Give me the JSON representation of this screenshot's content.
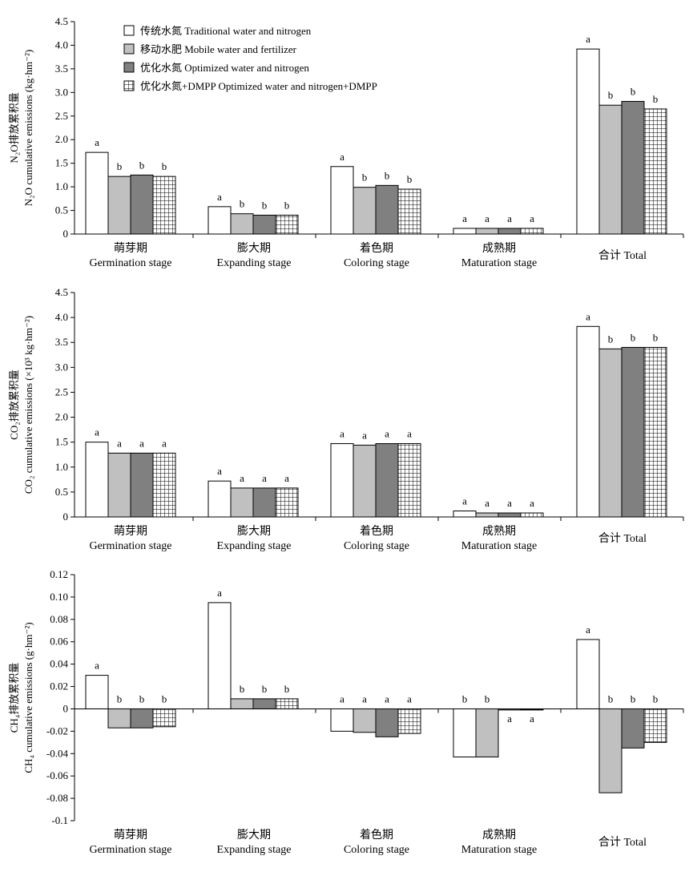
{
  "legend": [
    {
      "label": "传统水氮 Traditional water and nitrogen",
      "style": "white"
    },
    {
      "label": "移动水肥 Mobile water and fertilizer",
      "style": "light"
    },
    {
      "label": "优化水氮 Optimized water and nitrogen",
      "style": "dark"
    },
    {
      "label": "优化水氮+DMPP Optimized water and nitrogen+DMPP",
      "style": "grid"
    }
  ],
  "colors": {
    "white": "#ffffff",
    "light": "#c0c0c0",
    "dark": "#808080",
    "grid": "#ffffff"
  },
  "chart_data": [
    {
      "type": "bar",
      "ylabel_cn": "N₂O排放累积量",
      "ylabel_en": "N₂O cumulative emissions (kg·hm⁻²)",
      "ylim": [
        0,
        4.5
      ],
      "yticks": [
        "0",
        "0.5",
        "1.0",
        "1.5",
        "2.0",
        "2.5",
        "3.0",
        "3.5",
        "4.0",
        "4.5"
      ],
      "categories": [
        {
          "cn": "萌芽期",
          "en": "Germination stage"
        },
        {
          "cn": "膨大期",
          "en": "Expanding stage"
        },
        {
          "cn": "着色期",
          "en": "Coloring stage"
        },
        {
          "cn": "成熟期",
          "en": "Maturation stage"
        },
        {
          "cn": "合计 Total",
          "en": ""
        }
      ],
      "series": [
        {
          "name": "传统水氮 Traditional water and nitrogen",
          "values": [
            1.73,
            0.58,
            1.43,
            0.12,
            3.92
          ]
        },
        {
          "name": "移动水肥 Mobile water and fertilizer",
          "values": [
            1.22,
            0.43,
            0.99,
            0.12,
            2.73
          ]
        },
        {
          "name": "优化水氮 Optimized water and nitrogen",
          "values": [
            1.25,
            0.4,
            1.03,
            0.12,
            2.81
          ]
        },
        {
          "name": "优化水氮+DMPP Optimized water and nitrogen+DMPP",
          "values": [
            1.22,
            0.4,
            0.95,
            0.12,
            2.65
          ]
        }
      ],
      "letters": [
        [
          "a",
          "b",
          "b",
          "b"
        ],
        [
          "a",
          "b",
          "b",
          "b"
        ],
        [
          "a",
          "b",
          "b",
          "b"
        ],
        [
          "a",
          "a",
          "a",
          "a"
        ],
        [
          "a",
          "b",
          "b",
          "b"
        ]
      ]
    },
    {
      "type": "bar",
      "ylabel_cn": "CO₂排放累积量",
      "ylabel_en": "CO₂ cumulative emissions (×10³ kg·hm⁻²)",
      "ylim": [
        0,
        4.5
      ],
      "yticks": [
        "0",
        "0.5",
        "1.0",
        "1.5",
        "2.0",
        "2.5",
        "3.0",
        "3.5",
        "4.0",
        "4.5"
      ],
      "categories": [
        {
          "cn": "萌芽期",
          "en": "Germination stage"
        },
        {
          "cn": "膨大期",
          "en": "Expanding stage"
        },
        {
          "cn": "着色期",
          "en": "Coloring stage"
        },
        {
          "cn": "成熟期",
          "en": "Maturation stage"
        },
        {
          "cn": "合计 Total",
          "en": ""
        }
      ],
      "series": [
        {
          "name": "传统水氮 Traditional water and nitrogen",
          "values": [
            1.5,
            0.72,
            1.47,
            0.12,
            3.82
          ]
        },
        {
          "name": "移动水肥 Mobile water and fertilizer",
          "values": [
            1.28,
            0.58,
            1.44,
            0.08,
            3.37
          ]
        },
        {
          "name": "优化水氮 Optimized water and nitrogen",
          "values": [
            1.28,
            0.58,
            1.47,
            0.08,
            3.4
          ]
        },
        {
          "name": "优化水氮+DMPP Optimized water and nitrogen+DMPP",
          "values": [
            1.28,
            0.58,
            1.47,
            0.08,
            3.4
          ]
        }
      ],
      "letters": [
        [
          "a",
          "a",
          "a",
          "a"
        ],
        [
          "a",
          "a",
          "a",
          "a"
        ],
        [
          "a",
          "a",
          "a",
          "a"
        ],
        [
          "a",
          "a",
          "a",
          "a"
        ],
        [
          "a",
          "b",
          "b",
          "b"
        ]
      ]
    },
    {
      "type": "bar",
      "ylabel_cn": "CH₄排放累积量",
      "ylabel_en": "CH₄ cumulative emissions (g·hm⁻²)",
      "ylim": [
        -0.1,
        0.12
      ],
      "yticks": [
        "-0.1",
        "-0.08",
        "-0.06",
        "-0.04",
        "-0.02",
        "0",
        "0.02",
        "0.04",
        "0.06",
        "0.08",
        "0.10",
        "0.12"
      ],
      "categories": [
        {
          "cn": "萌芽期",
          "en": "Germination stage"
        },
        {
          "cn": "膨大期",
          "en": "Expanding stage"
        },
        {
          "cn": "着色期",
          "en": "Coloring stage"
        },
        {
          "cn": "成熟期",
          "en": "Maturation stage"
        },
        {
          "cn": "合计 Total",
          "en": ""
        }
      ],
      "series": [
        {
          "name": "传统水氮 Traditional water and nitrogen",
          "values": [
            0.03,
            0.095,
            -0.02,
            -0.043,
            0.062
          ]
        },
        {
          "name": "移动水肥 Mobile water and fertilizer",
          "values": [
            -0.017,
            0.009,
            -0.021,
            -0.043,
            -0.075
          ]
        },
        {
          "name": "优化水氮 Optimized water and nitrogen",
          "values": [
            -0.017,
            0.009,
            -0.025,
            -0.001,
            -0.035
          ]
        },
        {
          "name": "优化水氮+DMPP Optimized water and nitrogen+DMPP",
          "values": [
            -0.016,
            0.009,
            -0.022,
            -0.001,
            -0.03
          ]
        }
      ],
      "letters": [
        [
          "a",
          "b",
          "b",
          "b"
        ],
        [
          "a",
          "b",
          "b",
          "b"
        ],
        [
          "a",
          "a",
          "a",
          "a"
        ],
        [
          "b",
          "b",
          "a",
          "a"
        ],
        [
          "a",
          "b",
          "b",
          "b"
        ]
      ]
    }
  ]
}
